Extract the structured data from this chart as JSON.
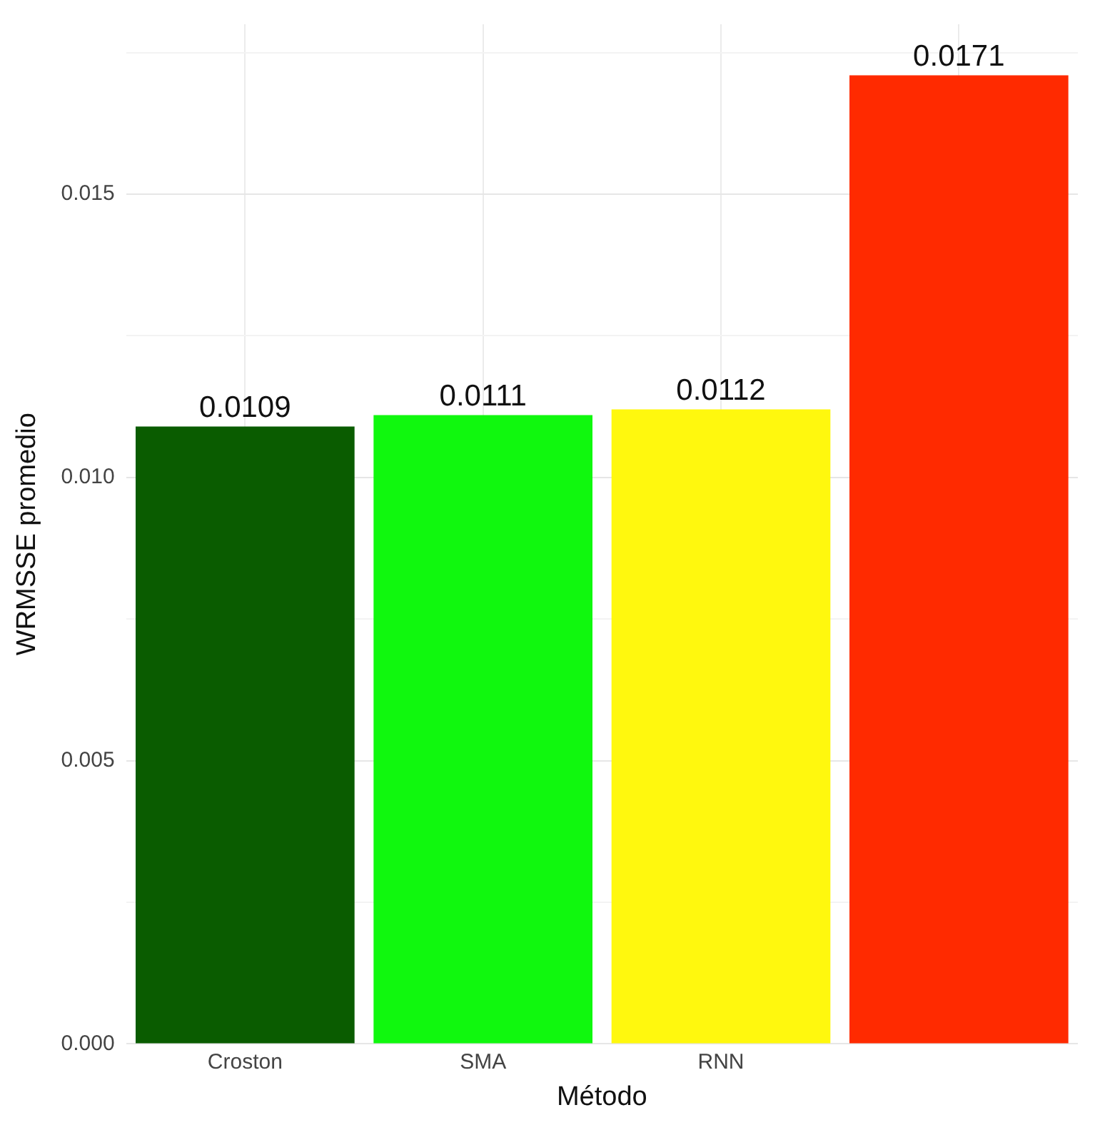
{
  "chart_data": {
    "type": "bar",
    "xlabel": "Método",
    "ylabel": "WRMSSE promedio",
    "categories": [
      "Croston",
      "SMA",
      "RNN",
      null
    ],
    "values": [
      0.0109,
      0.0111,
      0.0112,
      0.0171
    ],
    "colors": [
      "#0a5c00",
      "#10f80e",
      "#fff80e",
      "#ff2a00"
    ],
    "ylim": [
      0,
      0.018
    ],
    "yticks": [
      {
        "value": 0,
        "label": "0.000"
      },
      {
        "value": 0.0025,
        "label": null
      },
      0.005,
      {
        "value": 0.0075,
        "label": null
      },
      {
        "value": 0.01,
        "label": "0.010"
      },
      {
        "value": 0.0125,
        "label": null
      },
      0.015,
      {
        "value": 0.0175,
        "label": null
      }
    ],
    "grid": true,
    "data_labels": true
  }
}
